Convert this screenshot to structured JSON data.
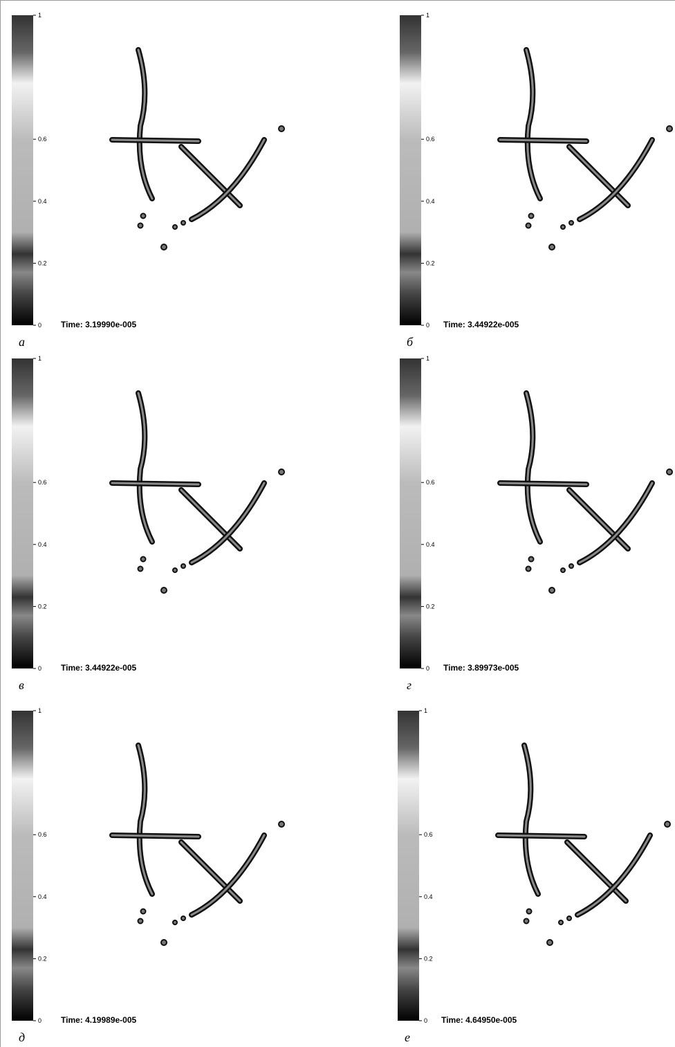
{
  "colorbar_ticks": [
    1,
    0.6,
    0.4,
    0.2,
    0
  ],
  "panels": [
    {
      "label": "а",
      "time": "Time: 3.19990e-005"
    },
    {
      "label": "б",
      "time": "Time: 3.44922e-005"
    },
    {
      "label": "в",
      "time": "Time: 3.44922e-005"
    },
    {
      "label": "г",
      "time": "Time: 3.89973e-005"
    },
    {
      "label": "д",
      "time": "Time: 4.19989e-005"
    },
    {
      "label": "е",
      "time": "Time: 4.64950e-005"
    }
  ]
}
